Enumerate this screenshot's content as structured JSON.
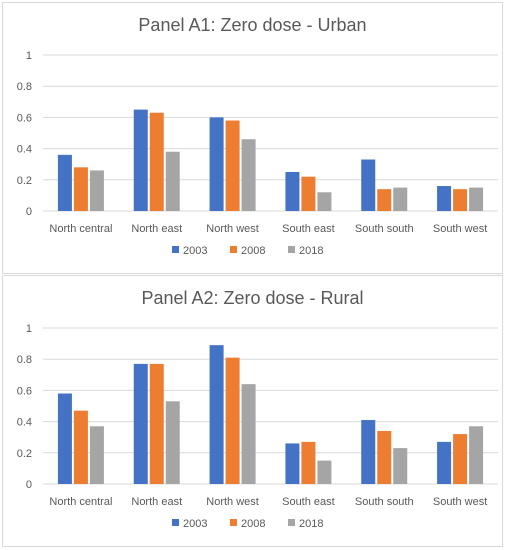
{
  "chart_data": [
    {
      "type": "bar",
      "title": "Panel A1: Zero dose - Urban",
      "categories": [
        "North central",
        "North east",
        "North west",
        "South east",
        "South south",
        "South west"
      ],
      "series": [
        {
          "name": "2003",
          "values": [
            0.36,
            0.65,
            0.6,
            0.25,
            0.33,
            0.16
          ]
        },
        {
          "name": "2008",
          "values": [
            0.28,
            0.63,
            0.58,
            0.22,
            0.14,
            0.14
          ]
        },
        {
          "name": "2018",
          "values": [
            0.26,
            0.38,
            0.46,
            0.12,
            0.15,
            0.15
          ]
        }
      ],
      "ylim": [
        0,
        1
      ],
      "yticks": [
        "0",
        "0.2",
        "0.4",
        "0.6",
        "0.8",
        "1"
      ],
      "grid": true,
      "legend": "bottom"
    },
    {
      "type": "bar",
      "title": "Panel A2: Zero dose - Rural",
      "categories": [
        "North central",
        "North east",
        "North west",
        "South east",
        "South south",
        "South west"
      ],
      "series": [
        {
          "name": "2003",
          "values": [
            0.58,
            0.77,
            0.89,
            0.26,
            0.41,
            0.27
          ]
        },
        {
          "name": "2008",
          "values": [
            0.47,
            0.77,
            0.81,
            0.27,
            0.34,
            0.32
          ]
        },
        {
          "name": "2018",
          "values": [
            0.37,
            0.53,
            0.64,
            0.15,
            0.23,
            0.37
          ]
        }
      ],
      "ylim": [
        0,
        1
      ],
      "yticks": [
        "0",
        "0.2",
        "0.4",
        "0.6",
        "0.8",
        "1"
      ],
      "grid": true,
      "legend": "bottom"
    }
  ],
  "colors": {
    "series": [
      "#4472C4",
      "#ED7D31",
      "#A5A5A5"
    ],
    "grid": "#d9d9d9",
    "text": "#595959"
  }
}
